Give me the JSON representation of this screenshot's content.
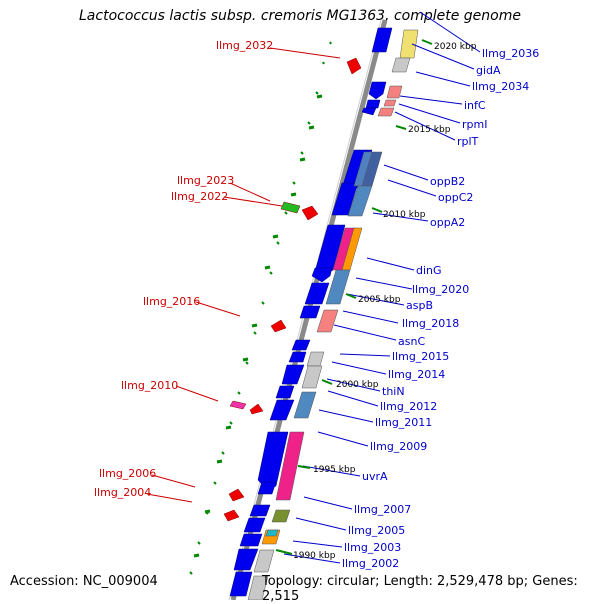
{
  "title": "Lactococcus lactis subsp. cremoris MG1363, complete genome",
  "footer": {
    "accession": "Accession: NC_009004",
    "topology": "Topology: circular; Length: 2,529,478 bp; Genes: 2,515"
  },
  "colors": {
    "backbone": "#8a8a8a",
    "forward_gene": "#0000ee",
    "reverse_gene": "#ee0000",
    "right_label": "#0000cc",
    "left_label": "#cc0000",
    "tick": "#008800"
  },
  "right_labels": [
    "llmg_2036",
    "gidA",
    "llmg_2034",
    "infC",
    "rpmI",
    "rplT",
    "oppB2",
    "oppC2",
    "oppA2",
    "dinG",
    "llmg_2020",
    "aspB",
    "llmg_2018",
    "asnC",
    "llmg_2015",
    "llmg_2014",
    "thiN",
    "llmg_2012",
    "llmg_2011",
    "llmg_2009",
    "uvrA",
    "llmg_2007",
    "llmg_2005",
    "llmg_2003",
    "llmg_2002"
  ],
  "left_labels": [
    "llmg_2032",
    "llmg_2023",
    "llmg_2022",
    "llmg_2016",
    "llmg_2010",
    "llmg_2006",
    "llmg_2004"
  ],
  "kbp_labels": [
    "2020 kbp",
    "2015 kbp",
    "2010 kbp",
    "2005 kbp",
    "2000 kbp",
    "1995 kbp",
    "1990 kbp"
  ]
}
